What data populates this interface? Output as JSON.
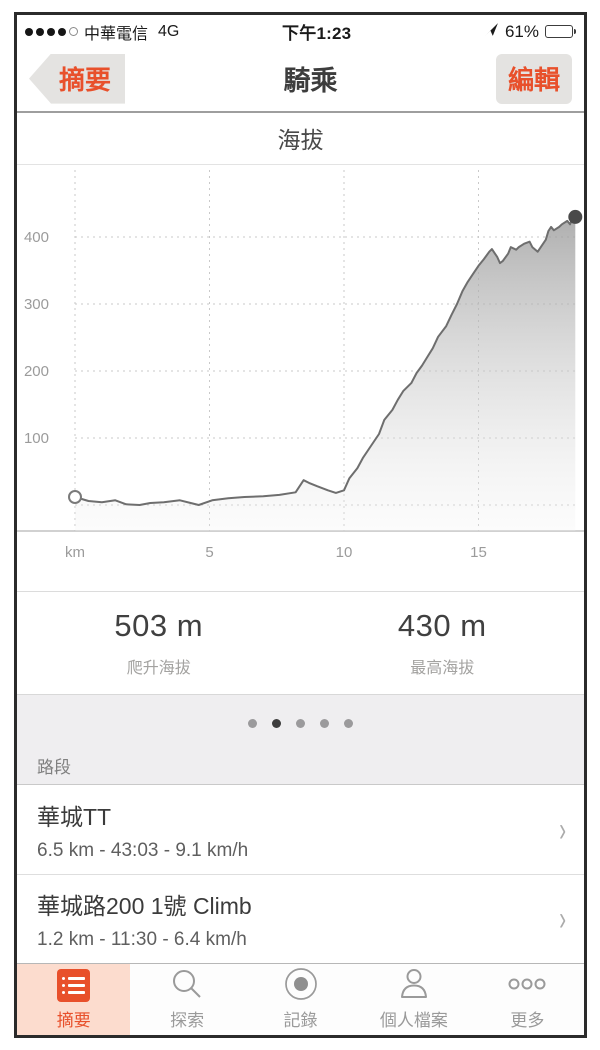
{
  "colors": {
    "accent": "#e8502b",
    "active_tab_bg": "#fcdcce",
    "chart_line": "#6e6e6e",
    "gray_text": "#9b9b9b"
  },
  "status_bar": {
    "signal_filled": 4,
    "signal_total": 5,
    "carrier": "中華電信",
    "network": "4G",
    "time": "下午1:23",
    "battery_percent": "61%"
  },
  "nav_bar": {
    "back_label": "摘要",
    "title": "騎乘",
    "edit_label": "編輯"
  },
  "chart_data": {
    "type": "area",
    "title": "海拔",
    "xlabel": "km",
    "ylabel": "",
    "xlim": [
      0,
      18.9
    ],
    "ylim": [
      -40,
      500
    ],
    "grid": true,
    "x_ticks": [
      {
        "km": 0,
        "label": "km"
      },
      {
        "km": 5,
        "label": "5"
      },
      {
        "km": 10,
        "label": "10"
      },
      {
        "km": 15,
        "label": "15"
      }
    ],
    "y_ticks": [
      0,
      100,
      200,
      300,
      400
    ],
    "profile": [
      [
        0,
        12
      ],
      [
        0.5,
        6
      ],
      [
        1,
        4
      ],
      [
        1.5,
        7
      ],
      [
        1.9,
        1
      ],
      [
        2.4,
        0
      ],
      [
        2.8,
        3
      ],
      [
        3.3,
        4
      ],
      [
        3.9,
        7
      ],
      [
        4.3,
        3
      ],
      [
        4.6,
        0
      ],
      [
        5.1,
        7
      ],
      [
        5.7,
        10
      ],
      [
        6.3,
        12
      ],
      [
        7,
        13
      ],
      [
        7.6,
        15
      ],
      [
        8.2,
        19
      ],
      [
        8.5,
        37
      ],
      [
        8.7,
        33
      ],
      [
        9,
        28
      ],
      [
        9.4,
        22
      ],
      [
        9.7,
        18
      ],
      [
        10,
        22
      ],
      [
        10.2,
        40
      ],
      [
        10.5,
        55
      ],
      [
        10.7,
        70
      ],
      [
        11,
        88
      ],
      [
        11.3,
        106
      ],
      [
        11.5,
        127
      ],
      [
        11.8,
        142
      ],
      [
        12,
        157
      ],
      [
        12.2,
        170
      ],
      [
        12.5,
        182
      ],
      [
        12.7,
        197
      ],
      [
        12.9,
        208
      ],
      [
        13.1,
        221
      ],
      [
        13.3,
        234
      ],
      [
        13.5,
        251
      ],
      [
        13.8,
        267
      ],
      [
        14,
        284
      ],
      [
        14.2,
        300
      ],
      [
        14.4,
        319
      ],
      [
        14.6,
        333
      ],
      [
        14.8,
        345
      ],
      [
        15,
        357
      ],
      [
        15.2,
        367
      ],
      [
        15.4,
        378
      ],
      [
        15.5,
        382
      ],
      [
        15.7,
        370
      ],
      [
        15.8,
        361
      ],
      [
        15.9,
        364
      ],
      [
        16.1,
        375
      ],
      [
        16.2,
        385
      ],
      [
        16.4,
        381
      ],
      [
        16.5,
        385
      ],
      [
        16.7,
        390
      ],
      [
        16.9,
        393
      ],
      [
        17,
        385
      ],
      [
        17.2,
        378
      ],
      [
        17.3,
        384
      ],
      [
        17.5,
        396
      ],
      [
        17.6,
        409
      ],
      [
        17.7,
        415
      ],
      [
        17.8,
        410
      ],
      [
        18,
        415
      ],
      [
        18.1,
        419
      ],
      [
        18.3,
        424
      ],
      [
        18.4,
        419
      ],
      [
        18.5,
        428
      ],
      [
        18.6,
        430
      ]
    ]
  },
  "stats": {
    "items": [
      {
        "value": "503 m",
        "label": "爬升海拔"
      },
      {
        "value": "430 m",
        "label": "最高海拔"
      }
    ]
  },
  "pager": {
    "count": 5,
    "active_index": 1
  },
  "segments": {
    "header": "路段",
    "items": [
      {
        "title": "華城TT",
        "subtitle": "6.5 km - 43:03 - 9.1 km/h"
      },
      {
        "title": "華城路200 1號 Climb",
        "subtitle": "1.2 km - 11:30 - 6.4 km/h"
      }
    ]
  },
  "tab_bar": {
    "items": [
      {
        "label": "摘要",
        "icon": "list-icon",
        "active": true
      },
      {
        "label": "探索",
        "icon": "search-icon",
        "active": false
      },
      {
        "label": "記錄",
        "icon": "record-icon",
        "active": false
      },
      {
        "label": "個人檔案",
        "icon": "profile-icon",
        "active": false
      },
      {
        "label": "更多",
        "icon": "more-icon",
        "active": false
      }
    ]
  }
}
